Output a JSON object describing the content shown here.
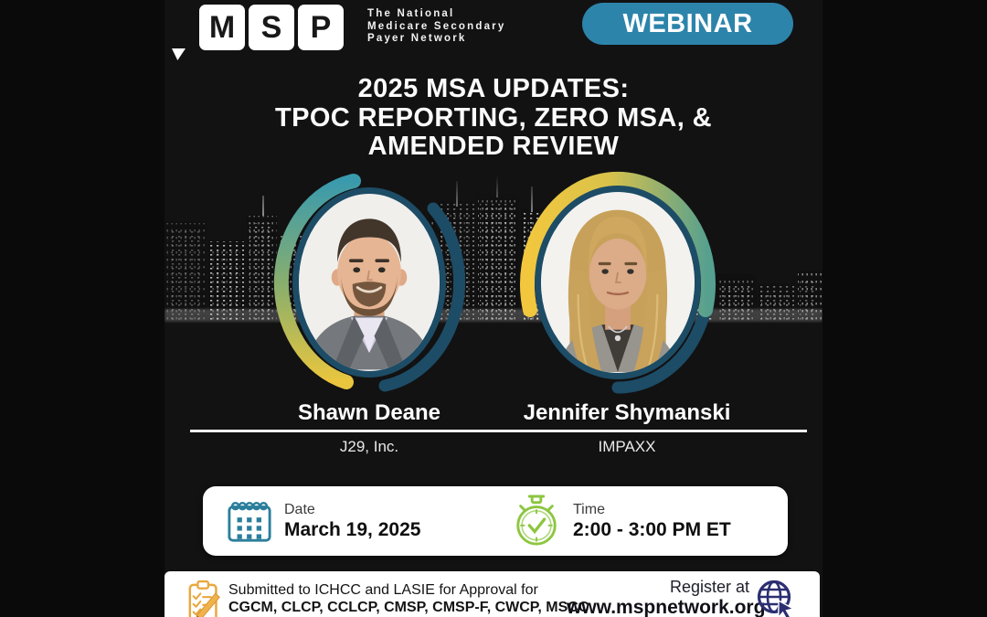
{
  "brand": {
    "logo_letters": [
      "M",
      "S",
      "P"
    ],
    "tagline_lines": [
      "The National",
      "Medicare Secondary",
      "Payer Network"
    ]
  },
  "badge": {
    "label": "WEBINAR"
  },
  "title": {
    "line1": "2025 MSA UPDATES:",
    "line2": "TPOC REPORTING, ZERO MSA, &",
    "line3": "AMENDED REVIEW"
  },
  "speakers": [
    {
      "name": "Shawn Deane",
      "org": "J29, Inc."
    },
    {
      "name": "Jennifer Shymanski",
      "org": "IMPAXX"
    }
  ],
  "details": {
    "date_label": "Date",
    "date_value": "March 19, 2025",
    "time_label": "Time",
    "time_value": "2:00 - 3:00 PM ET"
  },
  "footer": {
    "approval_line1": "Submitted to ICHCC and LASIE for Approval for",
    "approval_line2": "CGCM, CLCP, CCLCP, CMSP, CMSP-F, CWCP, MSCC",
    "register_label": "Register at",
    "register_url": "www.mspnetwork.org"
  },
  "icons": {
    "calendar": "calendar-icon",
    "stopwatch": "stopwatch-icon",
    "clipboard": "clipboard-checklist-icon",
    "globe": "globe-cursor-icon",
    "speech_bubble_tail": "speech-bubble-tail"
  },
  "colors": {
    "badge_teal": "#2d84ab",
    "ring_navy": "#1d4c66",
    "arc_teal": "#3a9aad",
    "arc_yellow": "#eac63e",
    "arc_green": "#56a08f",
    "calendar_teal": "#2b7e9b",
    "stopwatch_green": "#8cc63f",
    "clipboard_gold": "#eaa83f",
    "globe_navy": "#2b2f72",
    "background": "#0a0a0a"
  }
}
